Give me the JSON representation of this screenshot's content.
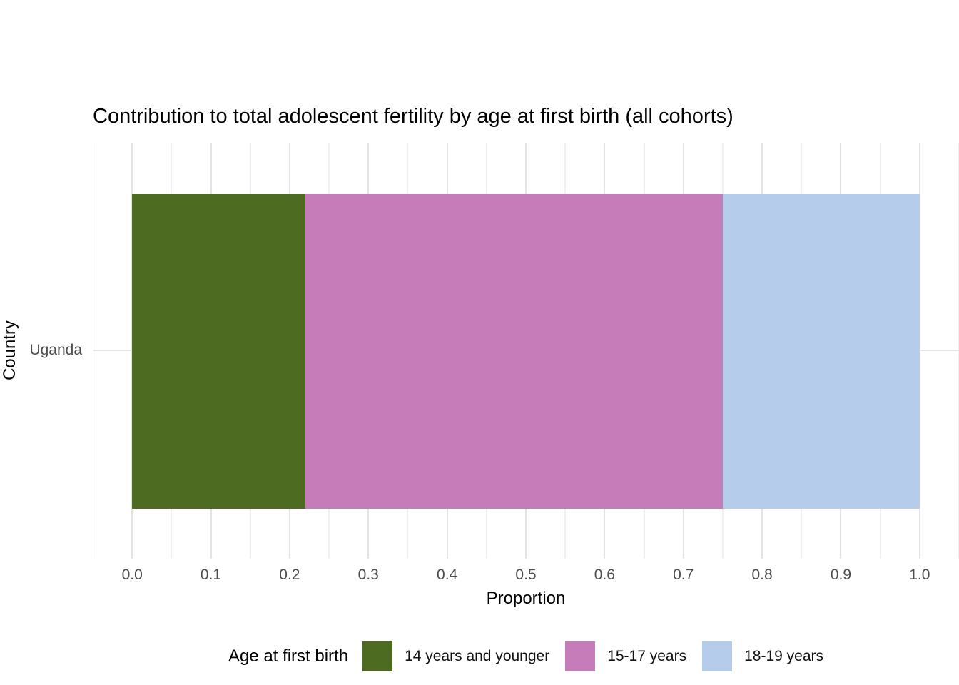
{
  "chart_data": {
    "type": "bar",
    "orientation": "horizontal_stacked",
    "title": "Contribution to total adolescent fertility by age at first birth (all cohorts)",
    "xlabel": "Proportion",
    "ylabel": "Country",
    "categories": [
      "Uganda"
    ],
    "series": [
      {
        "name": "14 years and younger",
        "color": "#4D6B21",
        "values": [
          0.22
        ]
      },
      {
        "name": "15-17 years",
        "color": "#C77CBA",
        "values": [
          0.53
        ]
      },
      {
        "name": "18-19 years",
        "color": "#B5CDEA",
        "values": [
          0.25
        ]
      }
    ],
    "x_ticks": [
      "0.0",
      "0.1",
      "0.2",
      "0.3",
      "0.4",
      "0.5",
      "0.6",
      "0.7",
      "0.8",
      "0.9",
      "1.0"
    ],
    "xlim": [
      -0.05,
      1.05
    ],
    "grid": {
      "major_vertical": true,
      "minor_vertical": true,
      "major_horizontal": true
    },
    "legend": {
      "title": "Age at first birth",
      "position": "bottom"
    },
    "colors": {
      "grid_major": "#E3E3E3",
      "grid_minor": "#F0F0F0",
      "tick_label": "#4D4D4D",
      "text": "#000000",
      "background": "#FFFFFF"
    }
  }
}
